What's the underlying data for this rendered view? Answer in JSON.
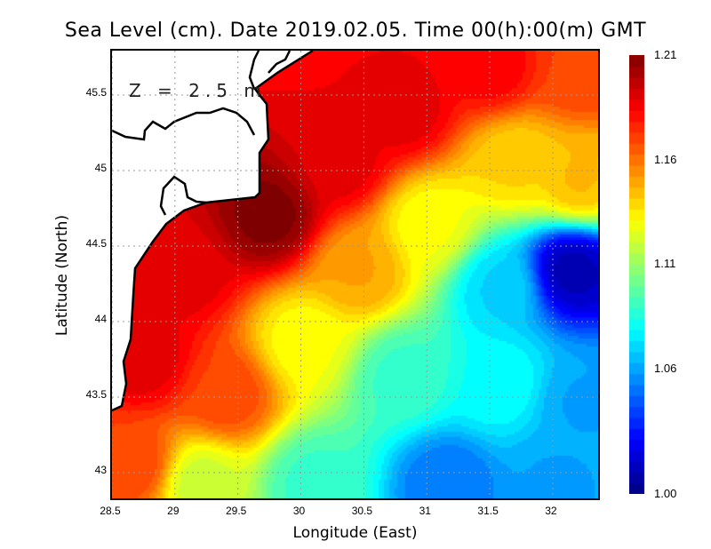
{
  "title": "Sea Level (cm). Date 2019.02.05. Time 00(h):00(m) GMT",
  "annotation": "Z = 2.5 m",
  "chart_data": {
    "type": "heatmap",
    "title": "Sea Level (cm). Date 2019.02.05. Time 00(h):00(m) GMT",
    "xlabel": "Longitude (East)",
    "ylabel": "Latitude (North)",
    "xlim": [
      28.5,
      32.4
    ],
    "ylim": [
      42.8,
      45.8
    ],
    "xticks": [
      "28.5",
      "29",
      "29.5",
      "30",
      "30.5",
      "31",
      "31.5",
      "32"
    ],
    "yticks": [
      "43",
      "43.5",
      "44",
      "44.5",
      "45",
      "45.5"
    ],
    "grid": true,
    "colormap": "jet",
    "colorbar": {
      "range": [
        1.0,
        1.21
      ],
      "ticks": [
        "1.00",
        "1.06",
        "1.11",
        "1.16",
        "1.21"
      ]
    },
    "samples": [
      {
        "lon": 29.74,
        "lat": 44.71,
        "value": 1.21
      },
      {
        "lon": 29.04,
        "lat": 44.35,
        "value": 1.19
      },
      {
        "lon": 28.75,
        "lat": 43.76,
        "value": 1.19
      },
      {
        "lon": 30.8,
        "lat": 45.41,
        "value": 1.19
      },
      {
        "lon": 30.3,
        "lat": 45.06,
        "value": 1.19
      },
      {
        "lon": 31.5,
        "lat": 45.7,
        "value": 1.185
      },
      {
        "lon": 32.2,
        "lat": 45.65,
        "value": 1.17
      },
      {
        "lon": 32.2,
        "lat": 44.94,
        "value": 1.145
      },
      {
        "lon": 31.7,
        "lat": 45.06,
        "value": 1.14
      },
      {
        "lon": 32.14,
        "lat": 44.35,
        "value": 1.01
      },
      {
        "lon": 31.58,
        "lat": 44.24,
        "value": 1.07
      },
      {
        "lon": 31.01,
        "lat": 44.65,
        "value": 1.13
      },
      {
        "lon": 30.45,
        "lat": 44.35,
        "value": 1.15
      },
      {
        "lon": 30.02,
        "lat": 43.88,
        "value": 1.13
      },
      {
        "lon": 30.8,
        "lat": 43.65,
        "value": 1.09
      },
      {
        "lon": 31.58,
        "lat": 43.59,
        "value": 1.08
      },
      {
        "lon": 32.2,
        "lat": 43.47,
        "value": 1.06
      },
      {
        "lon": 31.15,
        "lat": 42.94,
        "value": 1.05
      },
      {
        "lon": 32.0,
        "lat": 42.94,
        "value": 1.06
      },
      {
        "lon": 30.1,
        "lat": 42.94,
        "value": 1.09
      },
      {
        "lon": 29.18,
        "lat": 42.94,
        "value": 1.12
      },
      {
        "lon": 28.68,
        "lat": 43.06,
        "value": 1.17
      },
      {
        "lon": 29.39,
        "lat": 43.53,
        "value": 1.17
      }
    ]
  }
}
